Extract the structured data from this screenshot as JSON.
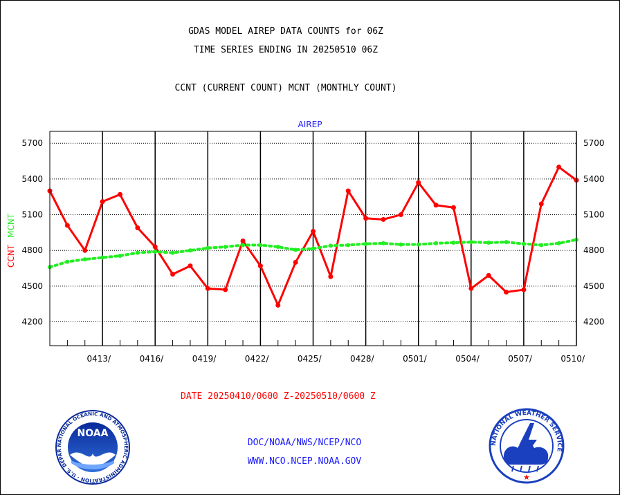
{
  "header": {
    "title_line1": "GDAS MODEL AIREP DATA COUNTS for 06Z",
    "title_line2": "TIME SERIES ENDING IN 20250510 06Z",
    "subtitle": "CCNT (CURRENT COUNT) MCNT (MONTHLY COUNT)"
  },
  "footer": {
    "date_range": "DATE 20250410/0600 Z-20250510/0600 Z",
    "credit_line1": "DOC/NOAA/NWS/NCEP/NCO",
    "credit_line2": "WWW.NCO.NCEP.NOAA.GOV"
  },
  "logos": {
    "noaa_text": "NOAA",
    "noaa_ring_text": "NATIONAL OCEANIC AND ATMOSPHERIC ADMINISTRATION · U.S. DEPARTMENT OF COMMERCE ·",
    "nws_ring_text": "NATIONAL WEATHER SERVICE"
  },
  "chart_data": {
    "type": "line",
    "title": "AIREP",
    "ylabel_parts": [
      "CCNT",
      "MCNT"
    ],
    "ylim": [
      4000,
      5800
    ],
    "yticks": [
      4200,
      4500,
      4800,
      5100,
      5400,
      5700
    ],
    "ytick_labels": [
      "4200",
      "4500",
      "4800",
      "5100",
      "5400",
      "5700"
    ],
    "x_range": [
      0,
      30
    ],
    "xtick_positions": [
      3,
      6,
      9,
      12,
      15,
      18,
      21,
      24,
      27,
      30
    ],
    "xtick_labels": [
      "0413/",
      "0416/",
      "0419/",
      "0422/",
      "0425/",
      "0428/",
      "0501/",
      "0504/",
      "0507/",
      "0510/"
    ],
    "grid": true,
    "colors": {
      "ccnt": "#ff0000",
      "mcnt": "#22ee22",
      "title": "#1a1aff",
      "axis": "#000000"
    },
    "series": [
      {
        "name": "CCNT",
        "style": "solid-markers",
        "values": [
          5300,
          5010,
          4800,
          5210,
          5270,
          4990,
          4830,
          4600,
          4670,
          4480,
          4470,
          4880,
          4670,
          4340,
          4700,
          4960,
          4580,
          5300,
          5070,
          5060,
          5100,
          5370,
          5180,
          5160,
          4480,
          4590,
          4450,
          4470,
          5190,
          5500,
          5390
        ]
      },
      {
        "name": "MCNT",
        "style": "dotted",
        "values": [
          4660,
          4705,
          4725,
          4740,
          4755,
          4780,
          4790,
          4780,
          4800,
          4820,
          4830,
          4845,
          4845,
          4830,
          4805,
          4815,
          4840,
          4845,
          4855,
          4860,
          4850,
          4850,
          4860,
          4865,
          4870,
          4865,
          4870,
          4855,
          4845,
          4860,
          4890
        ]
      }
    ]
  }
}
